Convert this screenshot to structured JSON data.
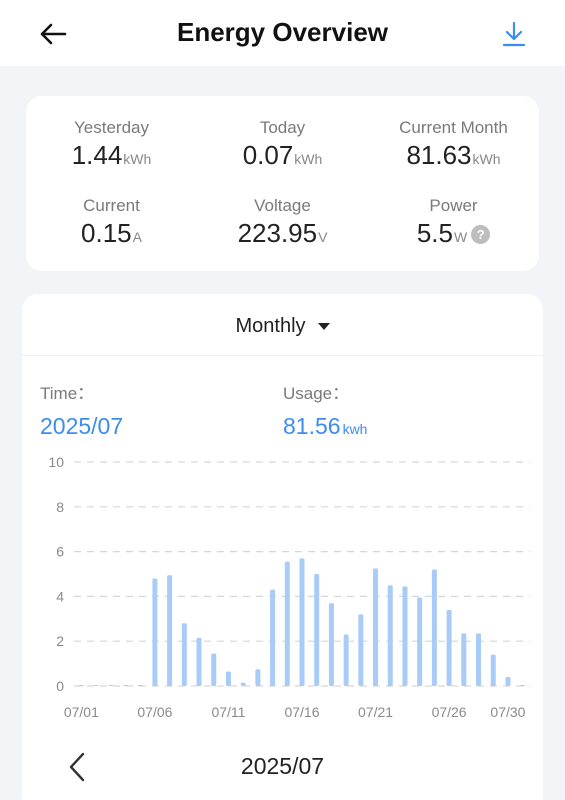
{
  "header": {
    "title": "Energy Overview",
    "back_icon": "arrow-left-icon",
    "download_icon": "download-icon"
  },
  "colors": {
    "accent": "#3d8cf0",
    "bar": "#a9cbf8"
  },
  "stats": [
    {
      "label": "Yesterday",
      "value": "1.44",
      "unit": "kWh"
    },
    {
      "label": "Today",
      "value": "0.07",
      "unit": "kWh"
    },
    {
      "label": "Current Month",
      "value": "81.63",
      "unit": "kWh"
    },
    {
      "label": "Current",
      "value": "0.15",
      "unit": "A"
    },
    {
      "label": "Voltage",
      "value": "223.95",
      "unit": "V"
    },
    {
      "label": "Power",
      "value": "5.5",
      "unit": "W",
      "help_icon": "question-icon"
    }
  ],
  "period": {
    "selected": "Monthly"
  },
  "summary": {
    "time_label": "Time：",
    "time_value": "2025/07",
    "usage_label": "Usage：",
    "usage_value": "81.56",
    "usage_unit": "kwh"
  },
  "chart_data": {
    "type": "bar",
    "x": [
      "07/01",
      "07/02",
      "07/03",
      "07/04",
      "07/05",
      "07/06",
      "07/07",
      "07/08",
      "07/09",
      "07/10",
      "07/11",
      "07/12",
      "07/13",
      "07/14",
      "07/15",
      "07/16",
      "07/17",
      "07/18",
      "07/19",
      "07/20",
      "07/21",
      "07/22",
      "07/23",
      "07/24",
      "07/25",
      "07/26",
      "07/27",
      "07/28",
      "07/29",
      "07/30",
      "07/31"
    ],
    "values": [
      0.02,
      0.02,
      0.02,
      0.02,
      0.02,
      4.8,
      4.95,
      2.8,
      2.15,
      1.45,
      0.65,
      0.15,
      0.75,
      4.3,
      5.55,
      5.7,
      5.0,
      3.7,
      2.3,
      3.2,
      5.25,
      4.5,
      4.45,
      3.95,
      5.2,
      3.4,
      2.35,
      2.35,
      1.4,
      0.4,
      0.0
    ],
    "x_tick_labels": [
      "07/01",
      "07/06",
      "07/11",
      "07/16",
      "07/21",
      "07/26",
      "07/30"
    ],
    "y_ticks": [
      0,
      2,
      4,
      6,
      8,
      10
    ],
    "ylim": [
      0,
      10
    ],
    "grid": true,
    "xlabel": "",
    "ylabel": ""
  },
  "nav": {
    "month": "2025/07",
    "prev_icon": "chevron-left-icon"
  }
}
